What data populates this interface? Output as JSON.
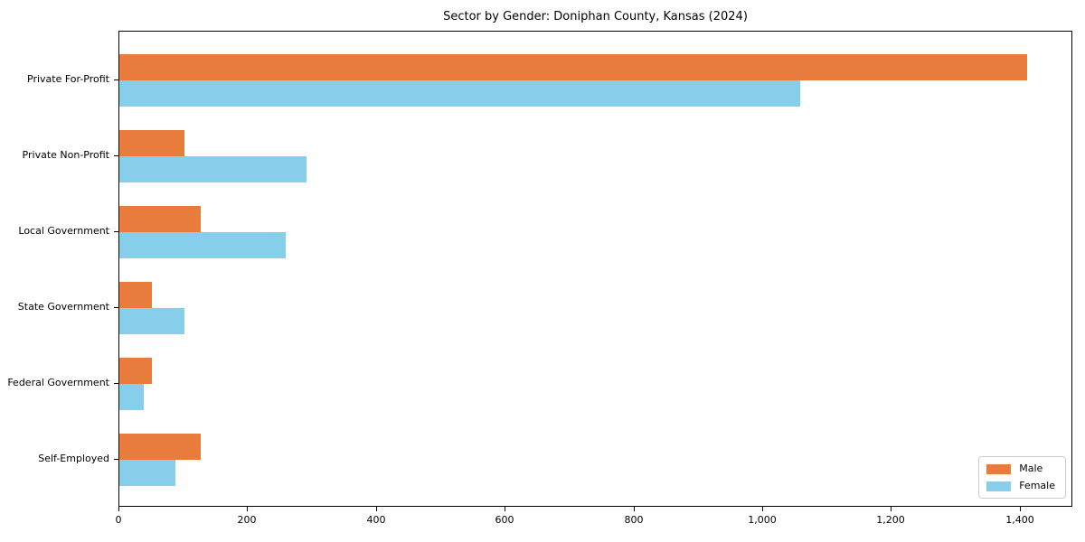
{
  "figure": {
    "title": "Sector by Gender: Doniphan County, Kansas (2024)"
  },
  "chart_data": {
    "type": "bar",
    "orientation": "horizontal",
    "title": "Sector by Gender: Doniphan County, Kansas (2024)",
    "categories": [
      "Private For-Profit",
      "Private Non-Profit",
      "Local Government",
      "State Government",
      "Federal Government",
      "Self-Employed"
    ],
    "series": [
      {
        "name": "Male",
        "color": "#e87c3d",
        "values": [
          1411,
          101,
          127,
          51,
          50,
          127
        ]
      },
      {
        "name": "Female",
        "color": "#87ceeb",
        "values": [
          1058,
          291,
          259,
          101,
          38,
          87
        ]
      }
    ],
    "xlabel": "",
    "ylabel": "",
    "xlim": [
      0,
      1482
    ],
    "xticks": [
      0,
      200,
      400,
      600,
      800,
      1000,
      1200,
      1400
    ],
    "xtick_labels": [
      "0",
      "200",
      "400",
      "600",
      "800",
      "1,000",
      "1,200",
      "1,400"
    ],
    "legend": {
      "position": "lower right",
      "items": [
        "Male",
        "Female"
      ]
    },
    "grid": false,
    "background_color": "#ffffff",
    "text_color": "#000000"
  }
}
